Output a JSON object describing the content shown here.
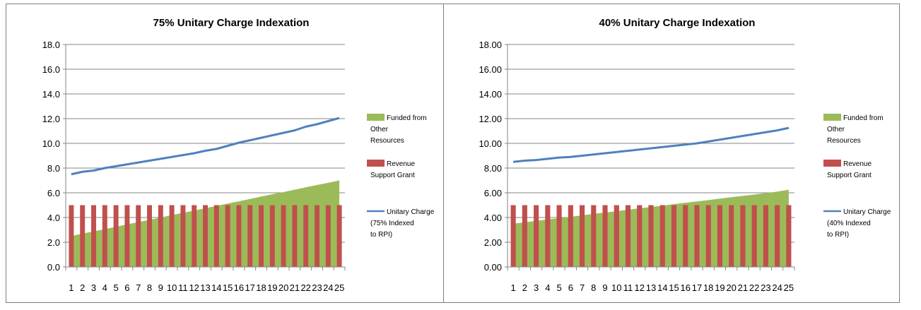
{
  "colors": {
    "area": "#9bbb59",
    "bar": "#c0504d",
    "line": "#4f81bd",
    "grid": "#868686",
    "border": "#7f7f7f"
  },
  "chart_data": [
    {
      "type": "combo",
      "title": "75% Unitary Charge Indexation",
      "categories": [
        "1",
        "2",
        "3",
        "4",
        "5",
        "6",
        "7",
        "8",
        "9",
        "10",
        "11",
        "12",
        "13",
        "14",
        "15",
        "16",
        "17",
        "18",
        "19",
        "20",
        "21",
        "22",
        "23",
        "24",
        "25"
      ],
      "ylim": [
        0,
        18
      ],
      "yticks": [
        "0.0",
        "2.0",
        "4.0",
        "6.0",
        "8.0",
        "10.0",
        "12.0",
        "14.0",
        "16.0",
        "18.0"
      ],
      "grid": true,
      "legend_position": "right",
      "series": [
        {
          "name": "Funded from Other Resources",
          "kind": "area",
          "legend_lines": [
            "Funded from",
            "Other",
            "Resources"
          ],
          "values": [
            2.5,
            2.69,
            2.88,
            3.06,
            3.25,
            3.44,
            3.63,
            3.81,
            4.0,
            4.19,
            4.38,
            4.56,
            4.75,
            4.94,
            5.13,
            5.31,
            5.5,
            5.69,
            5.88,
            6.06,
            6.25,
            6.44,
            6.63,
            6.81,
            7.0
          ]
        },
        {
          "name": "Revenue Support Grant",
          "kind": "bar",
          "legend_lines": [
            "Revenue",
            "Support Grant"
          ],
          "values": [
            5,
            5,
            5,
            5,
            5,
            5,
            5,
            5,
            5,
            5,
            5,
            5,
            5,
            5,
            5,
            5,
            5,
            5,
            5,
            5,
            5,
            5,
            5,
            5,
            5
          ]
        },
        {
          "name": "Unitary Charge (75% Indexed to RPI)",
          "kind": "line",
          "legend_lines": [
            "Unitary Charge",
            "(75% Indexed",
            "to RPI)"
          ],
          "values": [
            7.5,
            7.7,
            7.8,
            8.0,
            8.15,
            8.3,
            8.45,
            8.6,
            8.75,
            8.9,
            9.05,
            9.2,
            9.4,
            9.55,
            9.8,
            10.05,
            10.25,
            10.45,
            10.65,
            10.85,
            11.05,
            11.35,
            11.55,
            11.8,
            12.05
          ]
        }
      ]
    },
    {
      "type": "combo",
      "title": "40% Unitary Charge Indexation",
      "categories": [
        "1",
        "2",
        "3",
        "4",
        "5",
        "6",
        "7",
        "8",
        "9",
        "10",
        "11",
        "12",
        "13",
        "14",
        "15",
        "16",
        "17",
        "18",
        "19",
        "20",
        "21",
        "22",
        "23",
        "24",
        "25"
      ],
      "ylim": [
        0,
        18
      ],
      "yticks": [
        "0.00",
        "2.00",
        "4.00",
        "6.00",
        "8.00",
        "10.00",
        "12.00",
        "14.00",
        "16.00",
        "18.00"
      ],
      "grid": true,
      "legend_position": "right",
      "series": [
        {
          "name": "Funded from Other Resources",
          "kind": "area",
          "legend_lines": [
            "Funded from",
            "Other",
            "Resources"
          ],
          "values": [
            3.5,
            3.61,
            3.73,
            3.84,
            3.95,
            4.06,
            4.18,
            4.29,
            4.4,
            4.51,
            4.63,
            4.74,
            4.85,
            4.96,
            5.08,
            5.19,
            5.3,
            5.41,
            5.53,
            5.64,
            5.75,
            5.86,
            5.98,
            6.09,
            6.25
          ]
        },
        {
          "name": "Revenue Support Grant",
          "kind": "bar",
          "legend_lines": [
            "Revenue",
            "Support Grant"
          ],
          "values": [
            5,
            5,
            5,
            5,
            5,
            5,
            5,
            5,
            5,
            5,
            5,
            5,
            5,
            5,
            5,
            5,
            5,
            5,
            5,
            5,
            5,
            5,
            5,
            5,
            5
          ]
        },
        {
          "name": "Unitary Charge (40% Indexed to RPI)",
          "kind": "line",
          "legend_lines": [
            "Unitary Charge",
            "(40% Indexed",
            "to RPI)"
          ],
          "values": [
            8.5,
            8.6,
            8.65,
            8.75,
            8.85,
            8.9,
            9.0,
            9.1,
            9.2,
            9.3,
            9.4,
            9.5,
            9.6,
            9.7,
            9.8,
            9.9,
            10.0,
            10.15,
            10.3,
            10.45,
            10.6,
            10.75,
            10.9,
            11.05,
            11.25
          ]
        }
      ]
    }
  ]
}
